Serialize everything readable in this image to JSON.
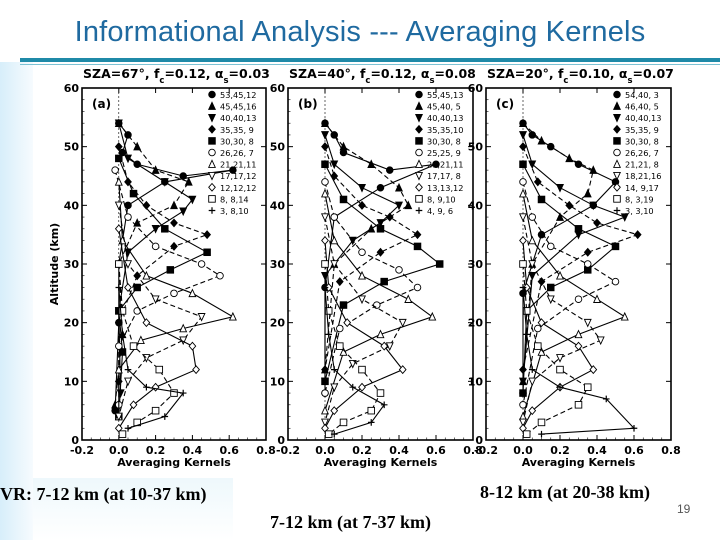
{
  "slide": {
    "title": "Informational Analysis --- Averaging Kernels",
    "page_number": "19"
  },
  "captions": {
    "a": "VR: 7-12 km (at 10-37 km)",
    "b": "8-12 km (at 20-38 km)",
    "c": "7-12 km (at 7-37 km)"
  },
  "chart_data": [
    {
      "type": "line",
      "panel": "(a)",
      "title_parts": {
        "sza": "SZA=67°,",
        "fc": "f",
        "fc_sub": "c",
        "fc_val": "=0.12,",
        "alpha": "α",
        "alpha_sub": "s",
        "alpha_val": "=0.03"
      },
      "xlabel": "Averaging Kernels",
      "ylabel": "Altitude (km)",
      "xlim": [
        -0.2,
        0.8
      ],
      "ylim": [
        0,
        60
      ],
      "xticks": [
        "-0.2",
        "0.0",
        "0.2",
        "0.4",
        "0.6",
        "0.8"
      ],
      "yticks": [
        "0",
        "10",
        "20",
        "30",
        "40",
        "50",
        "60"
      ],
      "legend": [
        "53,45,12",
        "45,45,16",
        "40,40,13",
        "35,35, 9",
        "30,30, 8",
        "26,26, 7",
        "21,21,11",
        "17,17,12",
        "12,12,12",
        "8, 8,14",
        "3, 8,10"
      ],
      "series": [
        {
          "name": "53,45,12",
          "x": [
            0.0,
            0.05,
            0.02,
            0.1,
            0.35,
            0.62,
            0.25,
            0.05,
            0.0,
            0.0,
            -0.02
          ],
          "y": [
            54,
            52,
            49,
            47,
            45,
            46,
            44,
            40,
            30,
            20,
            5
          ]
        },
        {
          "name": "45,45,16",
          "x": [
            0.0,
            0.1,
            0.2,
            0.38,
            0.3,
            0.1,
            0.0,
            0.02,
            -0.02
          ],
          "y": [
            54,
            50,
            46,
            44,
            40,
            37,
            30,
            18,
            6
          ]
        },
        {
          "name": "40,40,13",
          "x": [
            0.0,
            0.05,
            0.25,
            0.4,
            0.35,
            0.2,
            0.05,
            0.0,
            0.01
          ],
          "y": [
            54,
            48,
            44,
            41,
            39,
            36,
            32,
            22,
            8
          ]
        },
        {
          "name": "35,35, 9",
          "x": [
            0.0,
            0.05,
            0.15,
            0.3,
            0.48,
            0.3,
            0.1,
            0.0,
            0.0
          ],
          "y": [
            50,
            44,
            40,
            37,
            35,
            33,
            28,
            20,
            10
          ]
        },
        {
          "name": "30,30, 8",
          "x": [
            0.0,
            0.08,
            0.25,
            0.48,
            0.28,
            0.1,
            0.0,
            0.02,
            0.0
          ],
          "y": [
            48,
            42,
            36,
            32,
            29,
            26,
            22,
            15,
            4
          ]
        },
        {
          "name": "26,26, 7",
          "x": [
            -0.02,
            0.05,
            0.2,
            0.45,
            0.55,
            0.3,
            0.1,
            0.0,
            0.0
          ],
          "y": [
            46,
            38,
            33,
            30,
            28,
            25,
            22,
            16,
            6
          ]
        },
        {
          "name": "21,21,11",
          "x": [
            0.0,
            0.02,
            0.15,
            0.4,
            0.62,
            0.35,
            0.12,
            0.0,
            0.0
          ],
          "y": [
            44,
            34,
            28,
            25,
            21,
            19,
            17,
            12,
            4
          ]
        },
        {
          "name": "17,17,12",
          "x": [
            0.0,
            0.05,
            0.2,
            0.45,
            0.35,
            0.15,
            0.05,
            0.0
          ],
          "y": [
            40,
            30,
            24,
            21,
            17,
            14,
            10,
            4
          ]
        },
        {
          "name": "12,12,12",
          "x": [
            0.0,
            0.05,
            0.15,
            0.4,
            0.42,
            0.2,
            0.08,
            0.0
          ],
          "y": [
            36,
            26,
            20,
            16,
            12,
            9,
            6,
            2
          ]
        },
        {
          "name": "8, 8,14",
          "x": [
            0.0,
            0.02,
            0.08,
            0.22,
            0.3,
            0.2,
            0.1,
            0.02
          ],
          "y": [
            30,
            22,
            16,
            12,
            8,
            5,
            3,
            1
          ]
        },
        {
          "name": "3, 8,10",
          "x": [
            0.0,
            0.02,
            0.05,
            0.15,
            0.35,
            0.25,
            0.05
          ],
          "y": [
            26,
            18,
            12,
            9,
            8,
            4,
            2
          ]
        }
      ]
    },
    {
      "type": "line",
      "panel": "(b)",
      "title_parts": {
        "sza": "SZA=40°,",
        "fc": "f",
        "fc_sub": "c",
        "fc_val": "=0.12,",
        "alpha": "α",
        "alpha_sub": "s",
        "alpha_val": "=0.08"
      },
      "xlabel": "Averaging Kernels",
      "ylabel": "",
      "xlim": [
        -0.2,
        0.8
      ],
      "ylim": [
        0,
        60
      ],
      "xticks": [
        "-0.2",
        "0.0",
        "0.2",
        "0.4",
        "0.6",
        "0.8"
      ],
      "yticks": [
        "0",
        "10",
        "20",
        "30",
        "40",
        "50",
        "60"
      ],
      "legend": [
        "55,45,13",
        "45,40, 5",
        "40,40,13",
        "35,35,10",
        "30,30, 8",
        "25,25, 9",
        "21,21,11",
        "17,17, 8",
        "13,13,12",
        "8, 9,10",
        "4, 9, 6"
      ],
      "series": [
        {
          "name": "55,45,13",
          "x": [
            0.0,
            0.05,
            0.1,
            0.35,
            0.6,
            0.3,
            0.05,
            0.0,
            0.0
          ],
          "y": [
            54,
            52,
            49,
            46,
            47,
            43,
            38,
            26,
            8
          ]
        },
        {
          "name": "45,40, 5",
          "x": [
            0.0,
            0.1,
            0.25,
            0.4,
            0.45,
            0.25,
            0.05,
            0.0
          ],
          "y": [
            54,
            50,
            47,
            43,
            40,
            36,
            30,
            12
          ]
        },
        {
          "name": "40,40,13",
          "x": [
            0.0,
            0.05,
            0.2,
            0.4,
            0.3,
            0.15,
            0.0,
            0.0
          ],
          "y": [
            52,
            47,
            43,
            40,
            37,
            34,
            28,
            10
          ]
        },
        {
          "name": "35,35,10",
          "x": [
            0.0,
            0.05,
            0.2,
            0.35,
            0.5,
            0.3,
            0.08,
            0.0
          ],
          "y": [
            50,
            45,
            40,
            38,
            35,
            32,
            27,
            12
          ]
        },
        {
          "name": "30,30, 8",
          "x": [
            0.0,
            0.1,
            0.3,
            0.5,
            0.62,
            0.32,
            0.1,
            0.0
          ],
          "y": [
            47,
            41,
            36,
            33,
            30,
            27,
            23,
            10
          ]
        },
        {
          "name": "25,25, 9",
          "x": [
            0.0,
            0.05,
            0.2,
            0.4,
            0.5,
            0.28,
            0.08,
            0.0
          ],
          "y": [
            44,
            38,
            32,
            29,
            26,
            23,
            19,
            8
          ]
        },
        {
          "name": "21,21,11",
          "x": [
            0.0,
            0.05,
            0.2,
            0.45,
            0.58,
            0.3,
            0.1,
            0.0
          ],
          "y": [
            42,
            34,
            28,
            24,
            21,
            18,
            15,
            5
          ]
        },
        {
          "name": "17,17, 8",
          "x": [
            0.0,
            0.05,
            0.2,
            0.42,
            0.35,
            0.15,
            0.05,
            0.0
          ],
          "y": [
            38,
            30,
            24,
            20,
            16,
            13,
            9,
            3
          ]
        },
        {
          "name": "13,13,12",
          "x": [
            0.0,
            0.02,
            0.12,
            0.32,
            0.42,
            0.2,
            0.05,
            0.0
          ],
          "y": [
            34,
            26,
            20,
            16,
            12,
            9,
            5,
            2
          ]
        },
        {
          "name": "8, 9,10",
          "x": [
            0.0,
            0.02,
            0.08,
            0.2,
            0.3,
            0.25,
            0.1,
            0.02
          ],
          "y": [
            30,
            22,
            16,
            12,
            8,
            5,
            3,
            1
          ]
        },
        {
          "name": "4, 9, 6",
          "x": [
            0.0,
            0.02,
            0.05,
            0.15,
            0.32,
            0.25,
            0.05
          ],
          "y": [
            26,
            18,
            12,
            9,
            6,
            3,
            1
          ]
        }
      ]
    },
    {
      "type": "line",
      "panel": "(c)",
      "title_parts": {
        "sza": "SZA=20°,",
        "fc": "f",
        "fc_sub": "c",
        "fc_val": "=0.10,",
        "alpha": "α",
        "alpha_sub": "s",
        "alpha_val": "=0.07"
      },
      "xlabel": "Averaging Kernels",
      "ylabel": "",
      "xlim": [
        -0.2,
        0.8
      ],
      "ylim": [
        0,
        60
      ],
      "xticks": [
        "-0.2",
        "0.0",
        "0.2",
        "0.4",
        "0.6",
        "0.8"
      ],
      "yticks": [
        "0",
        "10",
        "20",
        "30",
        "40",
        "50",
        "60"
      ],
      "legend": [
        "54,40, 3",
        "46,40, 5",
        "40,40,13",
        "35,35, 9",
        "30,30, 8",
        "26,26, 7",
        "21,21, 8",
        "18,21,16",
        "14, 9,17",
        "8, 3,19",
        "3, 3,10"
      ],
      "series": [
        {
          "name": "54,40, 3",
          "x": [
            0.0,
            0.05,
            0.15,
            0.3,
            0.5,
            0.38,
            0.1,
            0.0,
            0.0
          ],
          "y": [
            54,
            52,
            50,
            47,
            44,
            40,
            35,
            25,
            8
          ]
        },
        {
          "name": "46,40, 5",
          "x": [
            0.0,
            0.1,
            0.25,
            0.38,
            0.35,
            0.2,
            0.05,
            0.0
          ],
          "y": [
            54,
            51,
            48,
            46,
            42,
            38,
            30,
            10
          ]
        },
        {
          "name": "40,40,13",
          "x": [
            0.0,
            0.05,
            0.2,
            0.38,
            0.55,
            0.3,
            0.05,
            0.0
          ],
          "y": [
            52,
            47,
            43,
            40,
            38,
            35,
            28,
            10
          ]
        },
        {
          "name": "35,35, 9",
          "x": [
            0.0,
            0.08,
            0.25,
            0.4,
            0.62,
            0.35,
            0.1,
            0.0
          ],
          "y": [
            50,
            44,
            40,
            37,
            35,
            32,
            27,
            12
          ]
        },
        {
          "name": "30,30, 8",
          "x": [
            0.0,
            0.1,
            0.3,
            0.5,
            0.35,
            0.15,
            0.02,
            0.0
          ],
          "y": [
            47,
            41,
            36,
            33,
            29,
            26,
            22,
            8
          ]
        },
        {
          "name": "26,26, 7",
          "x": [
            0.0,
            0.05,
            0.15,
            0.35,
            0.5,
            0.3,
            0.08,
            0.0
          ],
          "y": [
            44,
            38,
            33,
            30,
            27,
            24,
            19,
            6
          ]
        },
        {
          "name": "21,21, 8",
          "x": [
            0.0,
            0.05,
            0.2,
            0.4,
            0.55,
            0.3,
            0.1,
            0.0
          ],
          "y": [
            42,
            34,
            28,
            24,
            21,
            18,
            15,
            4
          ]
        },
        {
          "name": "18,21,16",
          "x": [
            0.0,
            0.05,
            0.15,
            0.35,
            0.42,
            0.2,
            0.05,
            0.0
          ],
          "y": [
            38,
            30,
            24,
            20,
            17,
            14,
            10,
            3
          ]
        },
        {
          "name": "14, 9,17",
          "x": [
            0.0,
            0.02,
            0.1,
            0.3,
            0.38,
            0.2,
            0.05,
            0.0
          ],
          "y": [
            34,
            26,
            20,
            16,
            12,
            9,
            5,
            2
          ]
        },
        {
          "name": "8, 3,19",
          "x": [
            0.0,
            0.02,
            0.08,
            0.2,
            0.35,
            0.3,
            0.1,
            0.02
          ],
          "y": [
            30,
            22,
            16,
            12,
            9,
            6,
            3,
            1
          ]
        },
        {
          "name": "3, 3,10",
          "x": [
            0.0,
            0.02,
            0.05,
            0.2,
            0.45,
            0.6,
            0.1
          ],
          "y": [
            26,
            18,
            12,
            9,
            7,
            2,
            1
          ]
        }
      ]
    }
  ]
}
